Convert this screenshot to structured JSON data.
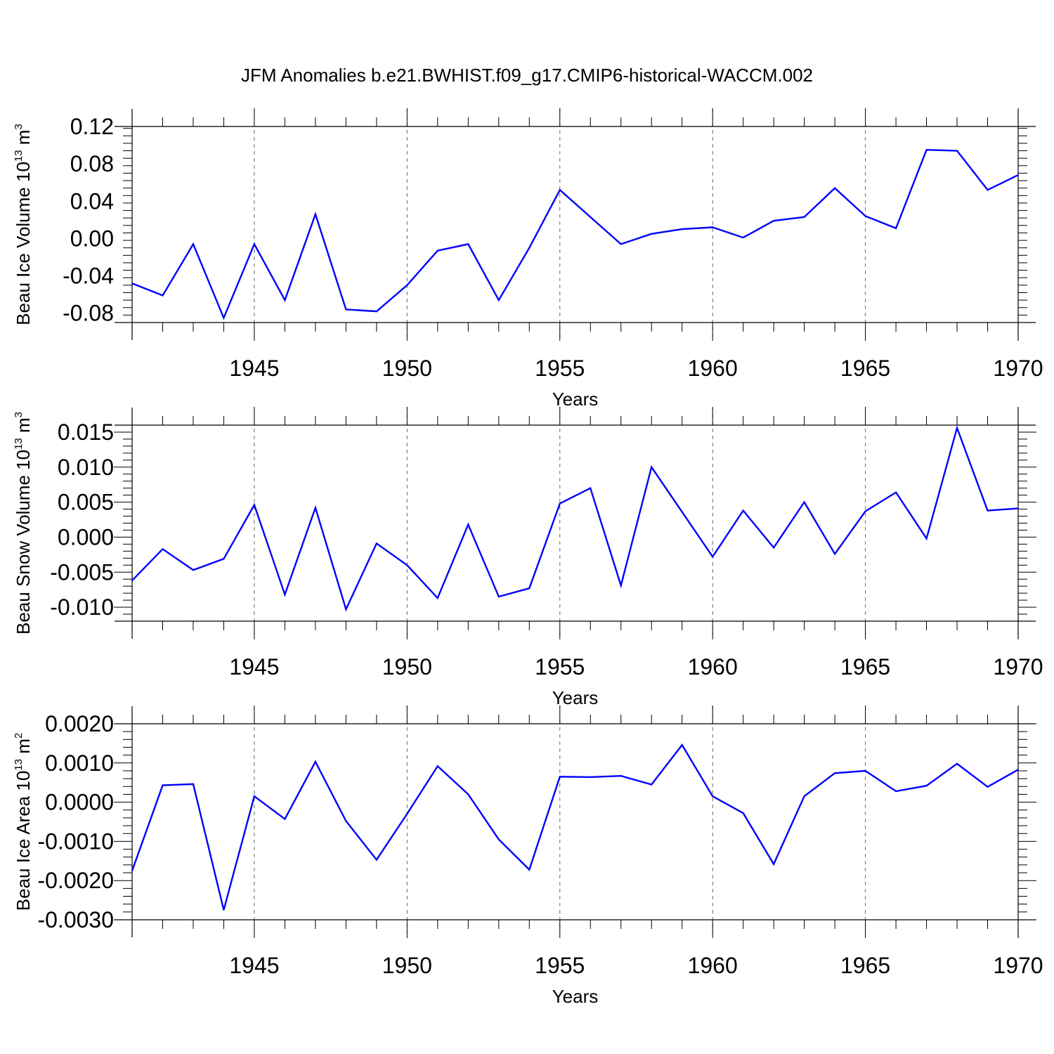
{
  "figure": {
    "title": "JFM Anomalies b.e21.BWHIST.f09_g17.CMIP6-historical-WACCM.002"
  },
  "colors": {
    "line": "#0000ff",
    "axis": "#000000",
    "grid": "#666666",
    "background": "#ffffff"
  },
  "chart_data": [
    {
      "type": "line",
      "xlabel": "Years",
      "ylabel_parts": [
        "Beau Ice Volume 10",
        "13",
        " m",
        "3"
      ],
      "xlim": [
        1941,
        1970
      ],
      "ylim": [
        -0.09,
        0.12
      ],
      "xticks": [
        1945,
        1950,
        1955,
        1960,
        1965,
        1970
      ],
      "yticks": [
        -0.08,
        -0.04,
        0.0,
        0.04,
        0.08,
        0.12
      ],
      "ytick_labels": [
        "-0.08",
        "-0.04",
        "0.00",
        "0.04",
        "0.08",
        "0.12"
      ],
      "grid": "vertical dashed at major x ticks",
      "x": [
        1941,
        1942,
        1943,
        1944,
        1945,
        1946,
        1947,
        1948,
        1949,
        1950,
        1951,
        1952,
        1953,
        1954,
        1955,
        1956,
        1957,
        1958,
        1959,
        1960,
        1961,
        1962,
        1963,
        1964,
        1965,
        1966,
        1967,
        1968,
        1969,
        1970
      ],
      "values": [
        -0.048,
        -0.061,
        -0.006,
        -0.085,
        -0.006,
        -0.066,
        0.026,
        -0.076,
        -0.078,
        -0.05,
        -0.013,
        -0.006,
        -0.066,
        -0.01,
        0.052,
        0.023,
        -0.006,
        0.005,
        0.01,
        0.012,
        0.001,
        0.019,
        0.023,
        0.054,
        0.024,
        0.011,
        0.095,
        0.094,
        0.052,
        0.068
      ]
    },
    {
      "type": "line",
      "xlabel": "Years",
      "ylabel_parts": [
        "Beau Snow Volume 10",
        "13",
        " m",
        "3"
      ],
      "xlim": [
        1941,
        1970
      ],
      "ylim": [
        -0.012,
        0.016
      ],
      "xticks": [
        1945,
        1950,
        1955,
        1960,
        1965,
        1970
      ],
      "yticks": [
        -0.01,
        -0.005,
        0.0,
        0.005,
        0.01,
        0.015
      ],
      "ytick_labels": [
        "-0.010",
        "-0.005",
        "0.000",
        "0.005",
        "0.010",
        "0.015"
      ],
      "grid": "vertical dashed at major x ticks",
      "x": [
        1941,
        1942,
        1943,
        1944,
        1945,
        1946,
        1947,
        1948,
        1949,
        1950,
        1951,
        1952,
        1953,
        1954,
        1955,
        1956,
        1957,
        1958,
        1959,
        1960,
        1961,
        1962,
        1963,
        1964,
        1965,
        1966,
        1967,
        1968,
        1969,
        1970
      ],
      "values": [
        -0.0062,
        -0.0017,
        -0.0047,
        -0.0031,
        0.0046,
        -0.0082,
        0.0042,
        -0.0103,
        -0.0009,
        -0.004,
        -0.0087,
        0.0018,
        -0.0085,
        -0.0073,
        0.0048,
        0.007,
        -0.0069,
        0.01,
        0.0036,
        -0.0028,
        0.0038,
        -0.0015,
        0.005,
        -0.0024,
        0.0037,
        0.0064,
        -0.0002,
        0.0156,
        0.0038,
        0.0041
      ]
    },
    {
      "type": "line",
      "xlabel": "Years",
      "ylabel_parts": [
        "Beau Ice Area 10",
        "13",
        " m",
        "2"
      ],
      "xlim": [
        1941,
        1970
      ],
      "ylim": [
        -0.003,
        0.002
      ],
      "xticks": [
        1945,
        1950,
        1955,
        1960,
        1965,
        1970
      ],
      "yticks": [
        -0.003,
        -0.002,
        -0.001,
        0.0,
        0.001,
        0.002
      ],
      "ytick_labels": [
        "-0.0030",
        "-0.0020",
        "-0.0010",
        "0.0000",
        "0.0010",
        "0.0020"
      ],
      "grid": "vertical dashed at major x ticks",
      "x": [
        1941,
        1942,
        1943,
        1944,
        1945,
        1946,
        1947,
        1948,
        1949,
        1950,
        1951,
        1952,
        1953,
        1954,
        1955,
        1956,
        1957,
        1958,
        1959,
        1960,
        1961,
        1962,
        1963,
        1964,
        1965,
        1966,
        1967,
        1968,
        1969,
        1970
      ],
      "values": [
        -0.00175,
        0.00043,
        0.00046,
        -0.00275,
        0.00015,
        -0.00043,
        0.00103,
        -0.00048,
        -0.00147,
        -0.0003,
        0.00092,
        0.0002,
        -0.00095,
        -0.00172,
        0.00065,
        0.00064,
        0.00067,
        0.00045,
        0.00146,
        0.00015,
        -0.00028,
        -0.00158,
        0.00015,
        0.00074,
        0.0008,
        0.00028,
        0.00042,
        0.00098,
        0.00039,
        0.00083
      ]
    }
  ]
}
